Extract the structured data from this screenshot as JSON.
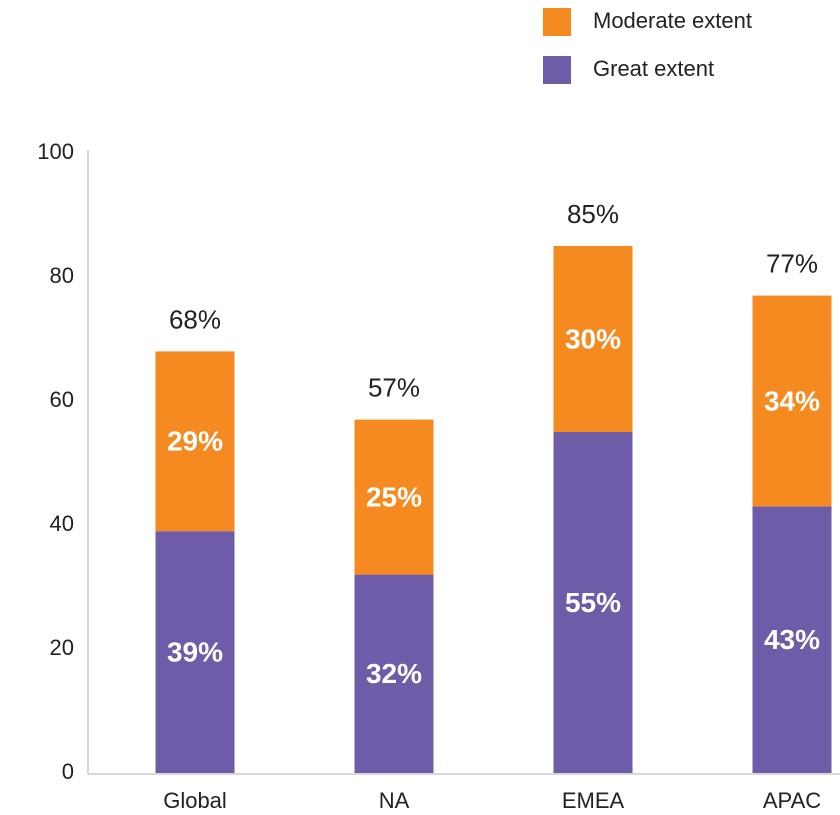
{
  "chart_data": {
    "type": "stacked-bar",
    "categories": [
      "Global",
      "NA",
      "EMEA",
      "APAC"
    ],
    "series": [
      {
        "name": "Great extent",
        "color": "#6f5ca8",
        "values": [
          39,
          32,
          55,
          43
        ],
        "value_labels": [
          "39%",
          "32%",
          "55%",
          "43%"
        ]
      },
      {
        "name": "Moderate extent",
        "color": "#f58a21",
        "values": [
          29,
          25,
          30,
          34
        ],
        "value_labels": [
          "29%",
          "25%",
          "30%",
          "34%"
        ]
      }
    ],
    "totals": [
      68,
      57,
      85,
      77
    ],
    "total_labels": [
      "68%",
      "57%",
      "85%",
      "77%"
    ],
    "ylim": [
      0,
      100
    ],
    "yticks": [
      0,
      20,
      40,
      60,
      80,
      100
    ],
    "grid": false,
    "legend": "top-right"
  }
}
